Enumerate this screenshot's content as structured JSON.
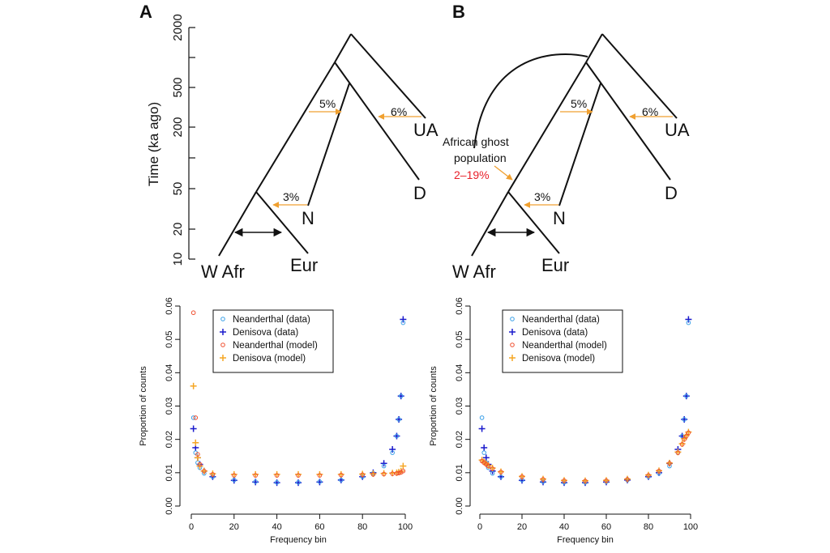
{
  "panels": {
    "a": {
      "letter": "A"
    },
    "b": {
      "letter": "B"
    }
  },
  "colors": {
    "tree_line": "#111111",
    "admixture_arrow": "#f0a030",
    "neanderthal_data": "#3aa0e8",
    "denisova_data": "#1a1acc",
    "neanderthal_model": "#f05030",
    "denisova_model": "#f5a623",
    "ghost_pct": "#e8202a"
  },
  "tree": {
    "y_axis_title": "Time (ka ago)",
    "y_ticks": [
      "2000",
      "500",
      "200",
      "50",
      "20",
      "10"
    ],
    "leaves": {
      "wafr": "W Afr",
      "eur": "Eur",
      "n": "N",
      "d": "D",
      "ua": "UA"
    },
    "admixture": {
      "to_human_from_n": "5%",
      "to_d_from_ua": "6%",
      "to_eur_from_n": "3%"
    },
    "ghost": {
      "line1": "African ghost",
      "line2": "population",
      "pct": "2–19%"
    }
  },
  "chart_data": [
    {
      "type": "scatter",
      "panel": "A",
      "xlabel": "Frequency bin",
      "ylabel": "Proportion of counts",
      "xlim": [
        0,
        100
      ],
      "ylim": [
        0,
        0.06
      ],
      "x_ticks": [
        "0",
        "20",
        "40",
        "60",
        "80",
        "100"
      ],
      "y_ticks": [
        "0.00",
        "0.01",
        "0.02",
        "0.03",
        "0.04",
        "0.05",
        "0.06"
      ],
      "legend_position": "top-left",
      "series": [
        {
          "name": "Neanderthal (data)",
          "marker": "circle",
          "x": [
            1,
            2,
            3,
            4,
            6,
            10,
            20,
            30,
            40,
            50,
            60,
            70,
            80,
            85,
            90,
            94,
            96,
            97,
            98,
            99
          ],
          "y": [
            0.0265,
            0.016,
            0.013,
            0.0115,
            0.0098,
            0.0088,
            0.0078,
            0.0073,
            0.0071,
            0.0071,
            0.0073,
            0.0078,
            0.0088,
            0.0098,
            0.012,
            0.016,
            0.021,
            0.026,
            0.033,
            0.055
          ]
        },
        {
          "name": "Denisova (data)",
          "marker": "plus",
          "x": [
            1,
            2,
            3,
            4,
            6,
            10,
            20,
            30,
            40,
            50,
            60,
            70,
            80,
            85,
            90,
            94,
            96,
            97,
            98,
            99
          ],
          "y": [
            0.0232,
            0.0175,
            0.0145,
            0.0125,
            0.0105,
            0.0088,
            0.0077,
            0.0072,
            0.007,
            0.007,
            0.0072,
            0.0078,
            0.0088,
            0.01,
            0.0128,
            0.017,
            0.021,
            0.026,
            0.033,
            0.056
          ]
        },
        {
          "name": "Neanderthal (model)",
          "marker": "circle",
          "x": [
            1,
            2,
            3,
            4,
            6,
            10,
            20,
            30,
            40,
            50,
            60,
            70,
            80,
            85,
            90,
            94,
            96,
            97,
            98,
            99
          ],
          "y": [
            0.058,
            0.0265,
            0.0155,
            0.0125,
            0.0105,
            0.0095,
            0.0092,
            0.0092,
            0.0092,
            0.0092,
            0.0092,
            0.0093,
            0.0094,
            0.0095,
            0.0096,
            0.0097,
            0.0098,
            0.0099,
            0.0101,
            0.0105
          ]
        },
        {
          "name": "Denisova (model)",
          "marker": "plus",
          "x": [
            1,
            2,
            3,
            4,
            6,
            10,
            20,
            30,
            40,
            50,
            60,
            70,
            80,
            85,
            90,
            94,
            96,
            97,
            98,
            99
          ],
          "y": [
            0.036,
            0.019,
            0.0145,
            0.012,
            0.0105,
            0.0097,
            0.0095,
            0.0095,
            0.0095,
            0.0095,
            0.0095,
            0.0095,
            0.0096,
            0.0097,
            0.0098,
            0.0099,
            0.01,
            0.0102,
            0.0105,
            0.012
          ]
        }
      ]
    },
    {
      "type": "scatter",
      "panel": "B",
      "xlabel": "Frequency bin",
      "ylabel": "Proportion of counts",
      "xlim": [
        0,
        100
      ],
      "ylim": [
        0,
        0.06
      ],
      "x_ticks": [
        "0",
        "20",
        "40",
        "60",
        "80",
        "100"
      ],
      "y_ticks": [
        "0.00",
        "0.01",
        "0.02",
        "0.03",
        "0.04",
        "0.05",
        "0.06"
      ],
      "legend_position": "top-left",
      "series": [
        {
          "name": "Neanderthal (data)",
          "marker": "circle",
          "x": [
            1,
            2,
            3,
            4,
            6,
            10,
            20,
            30,
            40,
            50,
            60,
            70,
            80,
            85,
            90,
            94,
            96,
            97,
            98,
            99
          ],
          "y": [
            0.0265,
            0.016,
            0.013,
            0.0115,
            0.0098,
            0.0088,
            0.0078,
            0.0073,
            0.0071,
            0.0071,
            0.0073,
            0.0078,
            0.0088,
            0.0098,
            0.012,
            0.016,
            0.021,
            0.026,
            0.033,
            0.055
          ]
        },
        {
          "name": "Denisova (data)",
          "marker": "plus",
          "x": [
            1,
            2,
            3,
            4,
            6,
            10,
            20,
            30,
            40,
            50,
            60,
            70,
            80,
            85,
            90,
            94,
            96,
            97,
            98,
            99
          ],
          "y": [
            0.0232,
            0.0175,
            0.0145,
            0.0125,
            0.0105,
            0.0088,
            0.0077,
            0.0072,
            0.007,
            0.007,
            0.0072,
            0.0078,
            0.0088,
            0.01,
            0.0128,
            0.017,
            0.021,
            0.026,
            0.033,
            0.056
          ]
        },
        {
          "name": "Neanderthal (model)",
          "marker": "circle",
          "x": [
            1,
            2,
            3,
            4,
            6,
            10,
            20,
            30,
            40,
            50,
            60,
            70,
            80,
            85,
            90,
            94,
            96,
            97,
            98,
            99
          ],
          "y": [
            0.0135,
            0.013,
            0.0125,
            0.012,
            0.0112,
            0.0102,
            0.0088,
            0.008,
            0.0076,
            0.0075,
            0.0076,
            0.008,
            0.0092,
            0.0105,
            0.0128,
            0.016,
            0.0185,
            0.02,
            0.021,
            0.022
          ]
        },
        {
          "name": "Denisova (model)",
          "marker": "plus",
          "x": [
            1,
            2,
            3,
            4,
            6,
            10,
            20,
            30,
            40,
            50,
            60,
            70,
            80,
            85,
            90,
            94,
            96,
            97,
            98,
            99
          ],
          "y": [
            0.0138,
            0.0132,
            0.0127,
            0.0122,
            0.0114,
            0.0103,
            0.0089,
            0.0081,
            0.0077,
            0.0076,
            0.0077,
            0.0081,
            0.0093,
            0.0106,
            0.0129,
            0.0162,
            0.0187,
            0.0202,
            0.0212,
            0.0222
          ]
        }
      ]
    }
  ]
}
